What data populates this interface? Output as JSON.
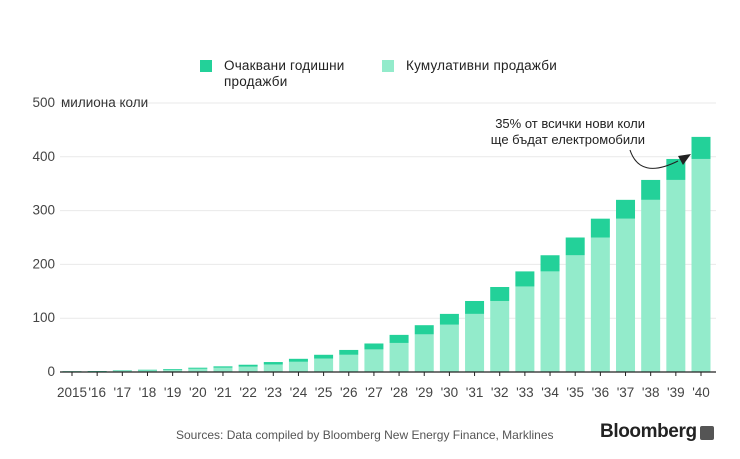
{
  "legend": {
    "items": [
      {
        "label": "Очаквани годишни продажби",
        "color": "#23d199"
      },
      {
        "label": "Кумулативни продажби",
        "color": "#93ebcb"
      }
    ]
  },
  "annotation": {
    "line1": "35% от всички нови коли",
    "line2": "ще бъдат електромобили"
  },
  "source": "Sources: Data compiled by Bloomberg New Energy Finance, Marklines",
  "brand": "Bloomberg",
  "chart_data": {
    "type": "bar",
    "stacked": true,
    "categories": [
      "2015",
      "'16",
      "'17",
      "'18",
      "'19",
      "'20",
      "'21",
      "'22",
      "'23",
      "'24",
      "'25",
      "'26",
      "'27",
      "'28",
      "'29",
      "'30",
      "'31",
      "'32",
      "'33",
      "'34",
      "'35",
      "'36",
      "'37",
      "'38",
      "'39",
      "'40"
    ],
    "series": [
      {
        "name": "Кумулативни продажби",
        "color": "#93ebcb",
        "values": [
          1,
          1,
          2,
          3,
          4,
          6,
          8,
          10,
          14,
          19,
          25,
          32,
          42,
          54,
          70,
          88,
          108,
          132,
          159,
          187,
          217,
          250,
          285,
          320,
          357,
          396
        ]
      },
      {
        "name": "Очаквани годишни продажби",
        "color": "#23d199",
        "values": [
          0.5,
          0.8,
          1,
          1.2,
          1.5,
          2,
          2.5,
          3.5,
          4.5,
          5.5,
          7,
          9,
          11,
          15,
          17,
          20,
          24,
          26,
          28,
          30,
          33,
          35,
          35,
          37,
          39,
          41
        ]
      }
    ],
    "ylabel": "милиона коли",
    "yticks": [
      0,
      100,
      200,
      300,
      400,
      500
    ],
    "ylim": [
      0,
      500
    ],
    "grid": true
  }
}
